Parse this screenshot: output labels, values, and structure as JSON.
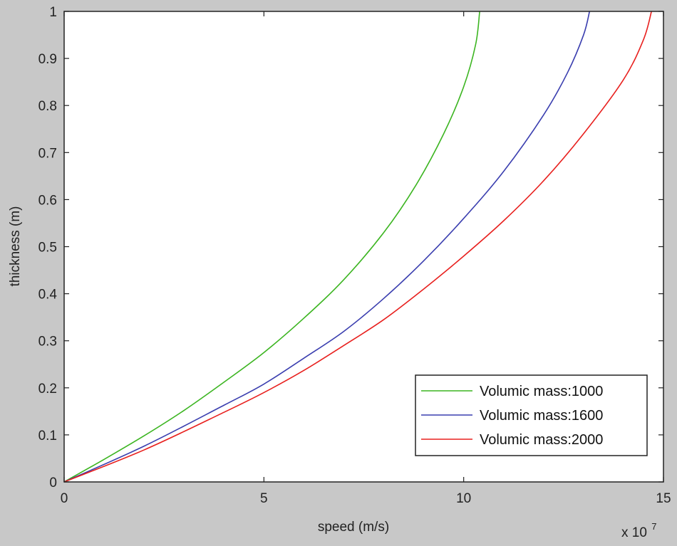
{
  "chart_data": {
    "type": "line",
    "title": "",
    "xlabel": "speed (m/s)",
    "ylabel": "thickness (m)",
    "x_multiplier": {
      "base": "x 10",
      "exponent": "7"
    },
    "xlim": [
      0,
      15
    ],
    "ylim": [
      0,
      1
    ],
    "xticks": [
      0,
      5,
      10,
      15
    ],
    "xtick_labels": [
      "0",
      "5",
      "10",
      "15"
    ],
    "yticks": [
      0,
      0.1,
      0.2,
      0.3,
      0.4,
      0.5,
      0.6,
      0.7,
      0.8,
      0.9,
      1
    ],
    "ytick_labels": [
      "0",
      "0.1",
      "0.2",
      "0.3",
      "0.4",
      "0.5",
      "0.6",
      "0.7",
      "0.8",
      "0.9",
      "1"
    ],
    "grid": false,
    "legend_position": "bottom-right",
    "series": [
      {
        "name": "Volumic mass:1000",
        "color": "#3cb521",
        "points": [
          [
            0,
            0
          ],
          [
            1,
            0.048
          ],
          [
            2,
            0.098
          ],
          [
            3,
            0.152
          ],
          [
            4,
            0.212
          ],
          [
            5,
            0.275
          ],
          [
            6,
            0.348
          ],
          [
            7,
            0.43
          ],
          [
            8,
            0.53
          ],
          [
            8.8,
            0.63
          ],
          [
            9.5,
            0.74
          ],
          [
            10,
            0.84
          ],
          [
            10.3,
            0.93
          ],
          [
            10.4,
            1.0
          ]
        ]
      },
      {
        "name": "Volumic mass:1600",
        "color": "#3a3eaf",
        "points": [
          [
            0,
            0
          ],
          [
            2,
            0.076
          ],
          [
            4,
            0.163
          ],
          [
            5,
            0.208
          ],
          [
            6,
            0.263
          ],
          [
            7,
            0.32
          ],
          [
            8,
            0.39
          ],
          [
            9,
            0.47
          ],
          [
            10,
            0.56
          ],
          [
            11,
            0.66
          ],
          [
            12,
            0.78
          ],
          [
            12.6,
            0.87
          ],
          [
            13,
            0.95
          ],
          [
            13.15,
            1.0
          ]
        ]
      },
      {
        "name": "Volumic mass:2000",
        "color": "#e8201e",
        "points": [
          [
            0,
            0
          ],
          [
            2,
            0.068
          ],
          [
            4,
            0.148
          ],
          [
            5,
            0.19
          ],
          [
            6,
            0.237
          ],
          [
            7,
            0.29
          ],
          [
            8,
            0.345
          ],
          [
            9,
            0.41
          ],
          [
            10,
            0.48
          ],
          [
            11,
            0.555
          ],
          [
            12,
            0.64
          ],
          [
            13,
            0.74
          ],
          [
            14,
            0.855
          ],
          [
            14.5,
            0.94
          ],
          [
            14.7,
            1.0
          ]
        ]
      }
    ]
  }
}
